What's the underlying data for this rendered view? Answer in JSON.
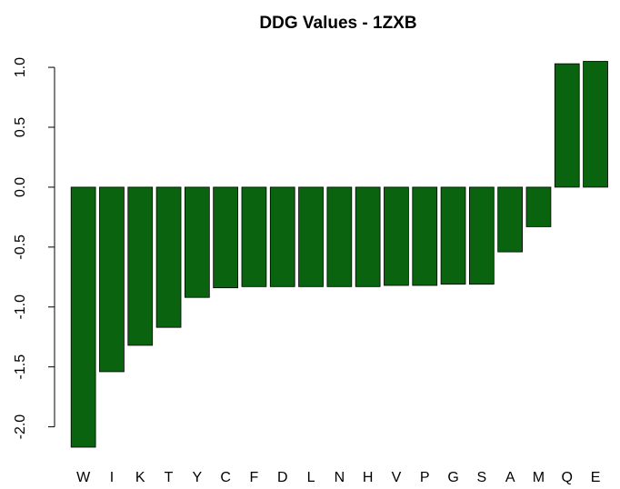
{
  "chart_data": {
    "type": "bar",
    "title": "DDG Values - 1ZXB",
    "xlabel": "",
    "ylabel": "",
    "categories": [
      "W",
      "I",
      "K",
      "T",
      "Y",
      "C",
      "F",
      "D",
      "L",
      "N",
      "H",
      "V",
      "P",
      "G",
      "S",
      "A",
      "M",
      "Q",
      "E"
    ],
    "values": [
      -2.17,
      -1.54,
      -1.32,
      -1.17,
      -0.92,
      -0.84,
      -0.83,
      -0.83,
      -0.83,
      -0.83,
      -0.83,
      -0.82,
      -0.82,
      -0.81,
      -0.81,
      -0.54,
      -0.33,
      1.03,
      1.05
    ],
    "yticks": [
      "-2.0",
      "-1.5",
      "-1.0",
      "-0.5",
      "0.0",
      "0.5",
      "1.0"
    ],
    "ylim": [
      -2.17,
      1.05
    ],
    "bar_color": "#0a640f",
    "grid": false,
    "legend": "none"
  }
}
